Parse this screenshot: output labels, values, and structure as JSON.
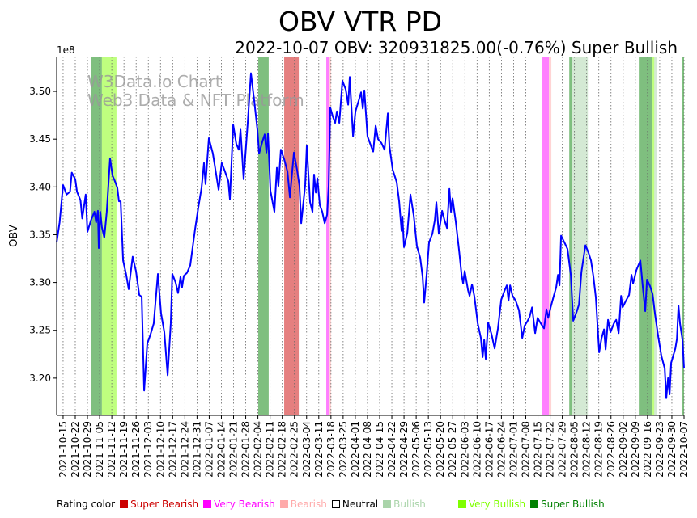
{
  "chart_data": {
    "type": "line",
    "title": "OBV VTR PD",
    "subtitle": "2022-10-07 OBV: 320931825.00(-0.76%) Super Bullish",
    "ylabel": "OBV",
    "y_multiplier_label": "1e8",
    "watermark": [
      "W3Data.io Chart",
      "Web3 Data & NFT Platform"
    ],
    "x_unit": "days since 2021-10-15",
    "xlim": [
      -3.7,
      357
    ],
    "ylim": [
      3.161,
      3.5364
    ],
    "grid": "vertical dotted",
    "yticks": [
      3.2,
      3.25,
      3.3,
      3.35,
      3.4,
      3.45,
      3.5
    ],
    "ytick_labels": [
      "3.20",
      "3.25",
      "3.30",
      "3.35",
      "3.40",
      "3.45",
      "3.50"
    ],
    "xtick_labels": [
      "2021-10-15",
      "2021-10-22",
      "2021-10-29",
      "2021-11-05",
      "2021-11-12",
      "2021-11-19",
      "2021-11-26",
      "2021-12-03",
      "2021-12-10",
      "2021-12-17",
      "2021-12-24",
      "2021-12-31",
      "2022-01-07",
      "2022-01-14",
      "2022-01-21",
      "2022-01-28",
      "2022-02-04",
      "2022-02-11",
      "2022-02-18",
      "2022-02-25",
      "2022-03-04",
      "2022-03-11",
      "2022-03-18",
      "2022-03-25",
      "2022-04-01",
      "2022-04-08",
      "2022-04-15",
      "2022-04-22",
      "2022-04-29",
      "2022-05-06",
      "2022-05-13",
      "2022-05-20",
      "2022-05-27",
      "2022-06-03",
      "2022-06-10",
      "2022-06-17",
      "2022-06-24",
      "2022-07-01",
      "2022-07-08",
      "2022-07-15",
      "2022-07-22",
      "2022-07-29",
      "2022-08-05",
      "2022-08-12",
      "2022-08-19",
      "2022-08-26",
      "2022-09-02",
      "2022-09-09",
      "2022-09-16",
      "2022-09-23",
      "2022-09-30",
      "2022-10-07"
    ],
    "line_color": "#0000ff",
    "series": [
      {
        "name": "OBV",
        "points": [
          [
            -4,
            3.342
          ],
          [
            -2,
            3.363
          ],
          [
            0,
            3.402
          ],
          [
            2,
            3.392
          ],
          [
            4,
            3.395
          ],
          [
            5,
            3.415
          ],
          [
            7,
            3.408
          ],
          [
            8,
            3.395
          ],
          [
            10,
            3.386
          ],
          [
            11,
            3.367
          ],
          [
            13,
            3.392
          ],
          [
            14,
            3.353
          ],
          [
            16,
            3.365
          ],
          [
            18,
            3.374
          ],
          [
            19,
            3.363
          ],
          [
            20,
            3.375
          ],
          [
            20.5,
            3.336
          ],
          [
            21.4,
            3.374
          ],
          [
            22.3,
            3.358
          ],
          [
            23.7,
            3.347
          ],
          [
            25.1,
            3.374
          ],
          [
            27,
            3.43
          ],
          [
            28.4,
            3.412
          ],
          [
            29.8,
            3.406
          ],
          [
            31.2,
            3.399
          ],
          [
            32.1,
            3.385
          ],
          [
            33.1,
            3.385
          ],
          [
            34.5,
            3.323
          ],
          [
            36.3,
            3.308
          ],
          [
            37.7,
            3.293
          ],
          [
            40,
            3.327
          ],
          [
            41.9,
            3.312
          ],
          [
            43.8,
            3.287
          ],
          [
            45.2,
            3.285
          ],
          [
            46.6,
            3.187
          ],
          [
            48.4,
            3.236
          ],
          [
            50.3,
            3.246
          ],
          [
            52.1,
            3.257
          ],
          [
            54.5,
            3.309
          ],
          [
            56.3,
            3.268
          ],
          [
            58.2,
            3.248
          ],
          [
            60.1,
            3.203
          ],
          [
            61.9,
            3.257
          ],
          [
            62.8,
            3.309
          ],
          [
            64.7,
            3.3
          ],
          [
            66.1,
            3.289
          ],
          [
            67.5,
            3.306
          ],
          [
            68.4,
            3.295
          ],
          [
            69.4,
            3.307
          ],
          [
            71.2,
            3.31
          ],
          [
            73.1,
            3.318
          ],
          [
            74.5,
            3.337
          ],
          [
            75.9,
            3.356
          ],
          [
            77.7,
            3.378
          ],
          [
            79.6,
            3.399
          ],
          [
            81,
            3.425
          ],
          [
            81.9,
            3.403
          ],
          [
            83.8,
            3.451
          ],
          [
            86.1,
            3.435
          ],
          [
            87.5,
            3.419
          ],
          [
            89.4,
            3.397
          ],
          [
            91.2,
            3.425
          ],
          [
            93.1,
            3.416
          ],
          [
            95,
            3.406
          ],
          [
            95.9,
            3.387
          ],
          [
            97.8,
            3.465
          ],
          [
            99.6,
            3.445
          ],
          [
            101,
            3.439
          ],
          [
            102,
            3.46
          ],
          [
            103.8,
            3.408
          ],
          [
            106.1,
            3.466
          ],
          [
            108,
            3.519
          ],
          [
            109.9,
            3.49
          ],
          [
            111.7,
            3.46
          ],
          [
            112.7,
            3.435
          ],
          [
            114.5,
            3.447
          ],
          [
            115.9,
            3.455
          ],
          [
            116.9,
            3.436
          ],
          [
            117.8,
            3.456
          ],
          [
            119.2,
            3.396
          ],
          [
            121.5,
            3.374
          ],
          [
            122.9,
            3.42
          ],
          [
            123.8,
            3.401
          ],
          [
            125.2,
            3.439
          ],
          [
            127.1,
            3.429
          ],
          [
            129,
            3.416
          ],
          [
            130.4,
            3.389
          ],
          [
            132.7,
            3.436
          ],
          [
            134.5,
            3.418
          ],
          [
            135.9,
            3.401
          ],
          [
            136.9,
            3.362
          ],
          [
            139.2,
            3.402
          ],
          [
            140.1,
            3.443
          ],
          [
            142,
            3.384
          ],
          [
            143.4,
            3.374
          ],
          [
            144.3,
            3.413
          ],
          [
            145.3,
            3.394
          ],
          [
            146.2,
            3.409
          ],
          [
            147.6,
            3.381
          ],
          [
            149,
            3.374
          ],
          [
            150.4,
            3.362
          ],
          [
            151.8,
            3.371
          ],
          [
            152.7,
            3.401
          ],
          [
            153.6,
            3.483
          ],
          [
            155,
            3.474
          ],
          [
            156.4,
            3.467
          ],
          [
            157.4,
            3.479
          ],
          [
            158.8,
            3.467
          ],
          [
            160.6,
            3.511
          ],
          [
            162.5,
            3.502
          ],
          [
            163.9,
            3.486
          ],
          [
            164.8,
            3.515
          ],
          [
            166.7,
            3.453
          ],
          [
            168.1,
            3.479
          ],
          [
            169.9,
            3.49
          ],
          [
            171.3,
            3.499
          ],
          [
            172.3,
            3.482
          ],
          [
            173.2,
            3.501
          ],
          [
            175,
            3.453
          ],
          [
            177.4,
            3.441
          ],
          [
            178.3,
            3.437
          ],
          [
            179.7,
            3.464
          ],
          [
            181.1,
            3.45
          ],
          [
            183,
            3.446
          ],
          [
            184.8,
            3.439
          ],
          [
            186.7,
            3.477
          ],
          [
            187.6,
            3.443
          ],
          [
            189.5,
            3.418
          ],
          [
            191.8,
            3.405
          ],
          [
            193.2,
            3.385
          ],
          [
            194.6,
            3.354
          ],
          [
            195.1,
            3.369
          ],
          [
            196,
            3.337
          ],
          [
            197.9,
            3.352
          ],
          [
            199.7,
            3.392
          ],
          [
            201.6,
            3.37
          ],
          [
            203.4,
            3.338
          ],
          [
            205.3,
            3.326
          ],
          [
            206.7,
            3.306
          ],
          [
            207.6,
            3.279
          ],
          [
            209,
            3.308
          ],
          [
            210.4,
            3.342
          ],
          [
            212.3,
            3.351
          ],
          [
            213.7,
            3.365
          ],
          [
            214.6,
            3.384
          ],
          [
            216,
            3.351
          ],
          [
            217.9,
            3.375
          ],
          [
            219.3,
            3.365
          ],
          [
            220.7,
            3.357
          ],
          [
            222.1,
            3.398
          ],
          [
            223,
            3.374
          ],
          [
            223.9,
            3.388
          ],
          [
            225.8,
            3.363
          ],
          [
            227.7,
            3.333
          ],
          [
            229.1,
            3.308
          ],
          [
            230,
            3.299
          ],
          [
            230.9,
            3.312
          ],
          [
            232.8,
            3.292
          ],
          [
            233.7,
            3.286
          ],
          [
            235.1,
            3.298
          ],
          [
            236.5,
            3.285
          ],
          [
            238.4,
            3.257
          ],
          [
            240.2,
            3.242
          ],
          [
            241.2,
            3.222
          ],
          [
            242.1,
            3.24
          ],
          [
            243,
            3.22
          ],
          [
            244.4,
            3.258
          ],
          [
            246.3,
            3.246
          ],
          [
            248.1,
            3.231
          ],
          [
            250,
            3.252
          ],
          [
            251.9,
            3.282
          ],
          [
            253.7,
            3.291
          ],
          [
            255.1,
            3.297
          ],
          [
            256.1,
            3.281
          ],
          [
            257,
            3.297
          ],
          [
            258.4,
            3.286
          ],
          [
            260.2,
            3.281
          ],
          [
            262.1,
            3.271
          ],
          [
            264,
            3.242
          ],
          [
            265.4,
            3.255
          ],
          [
            266.8,
            3.259
          ],
          [
            268.2,
            3.264
          ],
          [
            269.6,
            3.274
          ],
          [
            271.4,
            3.247
          ],
          [
            272.8,
            3.263
          ],
          [
            274.7,
            3.257
          ],
          [
            276.5,
            3.252
          ],
          [
            277.9,
            3.272
          ],
          [
            278.9,
            3.263
          ],
          [
            280.3,
            3.274
          ],
          [
            282.1,
            3.286
          ],
          [
            283.5,
            3.295
          ],
          [
            284.5,
            3.308
          ],
          [
            285.4,
            3.297
          ],
          [
            286.3,
            3.349
          ],
          [
            288.2,
            3.342
          ],
          [
            290,
            3.335
          ],
          [
            291.9,
            3.308
          ],
          [
            293.3,
            3.26
          ],
          [
            295.2,
            3.269
          ],
          [
            296.6,
            3.277
          ],
          [
            298,
            3.311
          ],
          [
            299.3,
            3.327
          ],
          [
            300.3,
            3.339
          ],
          [
            302.1,
            3.331
          ],
          [
            303.5,
            3.323
          ],
          [
            304.9,
            3.306
          ],
          [
            306.3,
            3.284
          ],
          [
            308.2,
            3.227
          ],
          [
            309.6,
            3.242
          ],
          [
            311,
            3.251
          ],
          [
            311.9,
            3.23
          ],
          [
            313.3,
            3.261
          ],
          [
            314.7,
            3.248
          ],
          [
            316.6,
            3.257
          ],
          [
            318,
            3.261
          ],
          [
            319.4,
            3.247
          ],
          [
            320.8,
            3.286
          ],
          [
            321.7,
            3.274
          ],
          [
            323.6,
            3.281
          ],
          [
            325.4,
            3.287
          ],
          [
            326.8,
            3.308
          ],
          [
            327.7,
            3.299
          ],
          [
            329.6,
            3.313
          ],
          [
            331.9,
            3.323
          ],
          [
            333.3,
            3.295
          ],
          [
            334.7,
            3.27
          ],
          [
            335.7,
            3.303
          ],
          [
            337.5,
            3.296
          ],
          [
            338.9,
            3.288
          ],
          [
            340.3,
            3.267
          ],
          [
            342.2,
            3.243
          ],
          [
            344,
            3.223
          ],
          [
            345.9,
            3.21
          ],
          [
            346.8,
            3.179
          ],
          [
            347.8,
            3.2
          ],
          [
            348.7,
            3.183
          ],
          [
            349.6,
            3.216
          ],
          [
            352,
            3.231
          ],
          [
            352.9,
            3.241
          ],
          [
            353.8,
            3.276
          ],
          [
            354.7,
            3.257
          ],
          [
            356.1,
            3.24
          ],
          [
            357,
            3.21
          ]
        ]
      }
    ],
    "rating_bands": [
      {
        "rating": "Super Bullish",
        "start": 16.3,
        "end": 22.3
      },
      {
        "rating": "Very Bullish",
        "start": 22.3,
        "end": 30.7
      },
      {
        "rating": "Super Bullish",
        "start": 112.2,
        "end": 118.2
      },
      {
        "rating": "Super Bearish",
        "start": 127.1,
        "end": 135.5
      },
      {
        "rating": "Very Bearish",
        "start": 151.3,
        "end": 153.2
      },
      {
        "rating": "Bearish",
        "start": 153.2,
        "end": 154.1
      },
      {
        "rating": "Very Bearish",
        "start": 275.1,
        "end": 279.3
      },
      {
        "rating": "Bearish",
        "start": 279.3,
        "end": 280.7
      },
      {
        "rating": "Super Bullish",
        "start": 291,
        "end": 292.4
      },
      {
        "rating": "Bullish",
        "start": 292.4,
        "end": 301.7
      },
      {
        "rating": "Super Bullish",
        "start": 331,
        "end": 338.5
      },
      {
        "rating": "Very Bullish",
        "start": 338.5,
        "end": 339.9
      },
      {
        "rating": "Bullish",
        "start": 339.9,
        "end": 341.3
      },
      {
        "rating": "Super Bullish",
        "start": 355.7,
        "end": 357
      }
    ],
    "legend": {
      "title": "Rating color",
      "placement": "bottom",
      "items": [
        {
          "label": "Super Bearish",
          "color": "#cc0000"
        },
        {
          "label": "Very Bearish",
          "color": "#ff00ff"
        },
        {
          "label": "Bearish",
          "color": "#ffaaaa"
        },
        {
          "label": "Neutral",
          "color": "#ffffff",
          "text_color": "#000000"
        },
        {
          "label": "Bullish",
          "color": "#aad4aa"
        },
        {
          "label": "Very Bullish",
          "color": "#7fff00"
        },
        {
          "label": "Super Bullish",
          "color": "#008000"
        }
      ]
    }
  }
}
